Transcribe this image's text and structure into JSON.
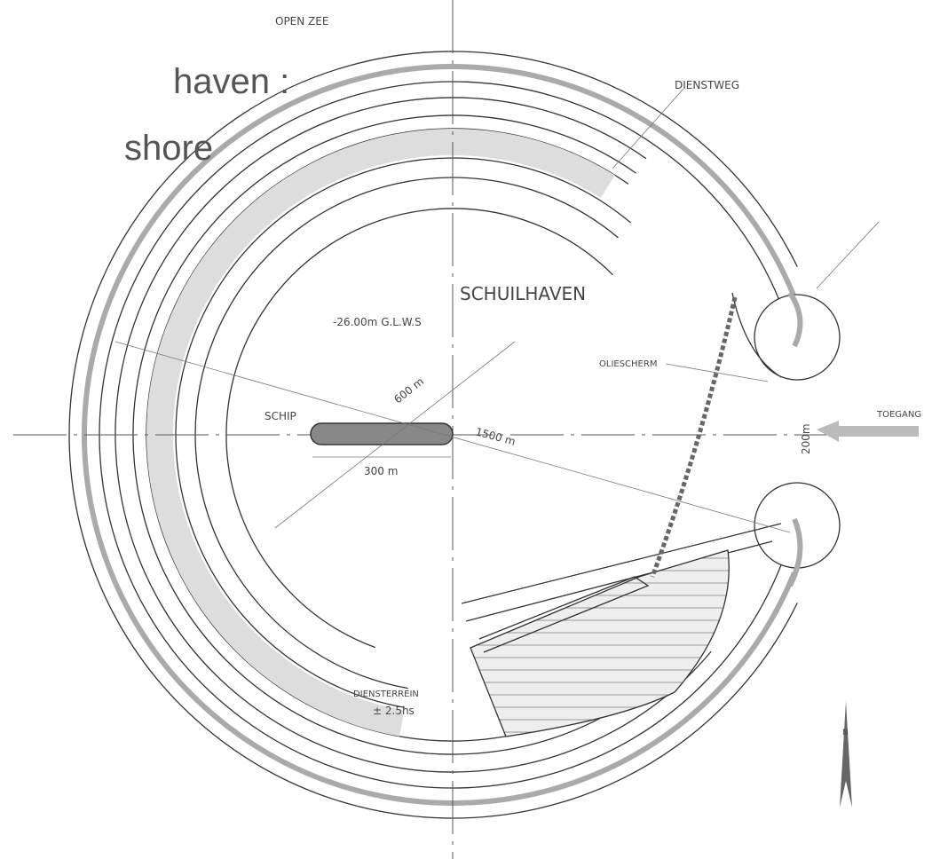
{
  "heading": {
    "line1": "haven :",
    "line2": "shore"
  },
  "labels": {
    "open_zee": "OPEN ZEE",
    "dienstweg": "DIENSTWEG",
    "schuilhaven": "SCHUILHAVEN",
    "depth": "-26.00m G.L.W.S",
    "oliescherm": "OLIESCHERM",
    "schip": "SCHIP",
    "diameter": "600 m",
    "radius": "1500 m",
    "ship_length": "300 m",
    "toegang": "TOEGANG",
    "entrance_width": "200m",
    "dienstterrein": "DIENSTERREIN",
    "area": "± 2.5hs",
    "north": "N"
  }
}
